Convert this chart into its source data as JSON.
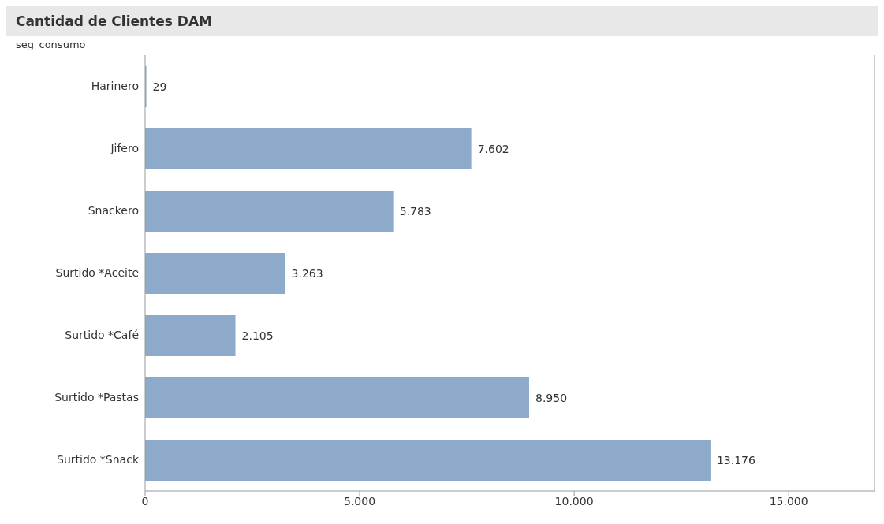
{
  "chart_data": {
    "type": "bar",
    "orientation": "horizontal",
    "title": "Cantidad de Clientes DAM",
    "ylabel": "seg_consumo",
    "categories": [
      "Harinero",
      "Jifero",
      "Snackero",
      "Surtido *Aceite",
      "Surtido *Café",
      "Surtido *Pastas",
      "Surtido *Snack"
    ],
    "values": [
      29,
      7602,
      5783,
      3263,
      2105,
      8950,
      13176
    ],
    "value_labels": [
      "29",
      "7.602",
      "5.783",
      "3.263",
      "2.105",
      "8.950",
      "13.176"
    ],
    "color": "#8eaacb",
    "xlim": [
      0,
      17000
    ],
    "xticks": [
      0,
      {
        "value": 5000,
        "label": "5.000"
      },
      {
        "value": 10000,
        "label": "10.000"
      },
      {
        "value": 15000,
        "label": "15.000"
      }
    ],
    "grid": false,
    "legend": false
  }
}
